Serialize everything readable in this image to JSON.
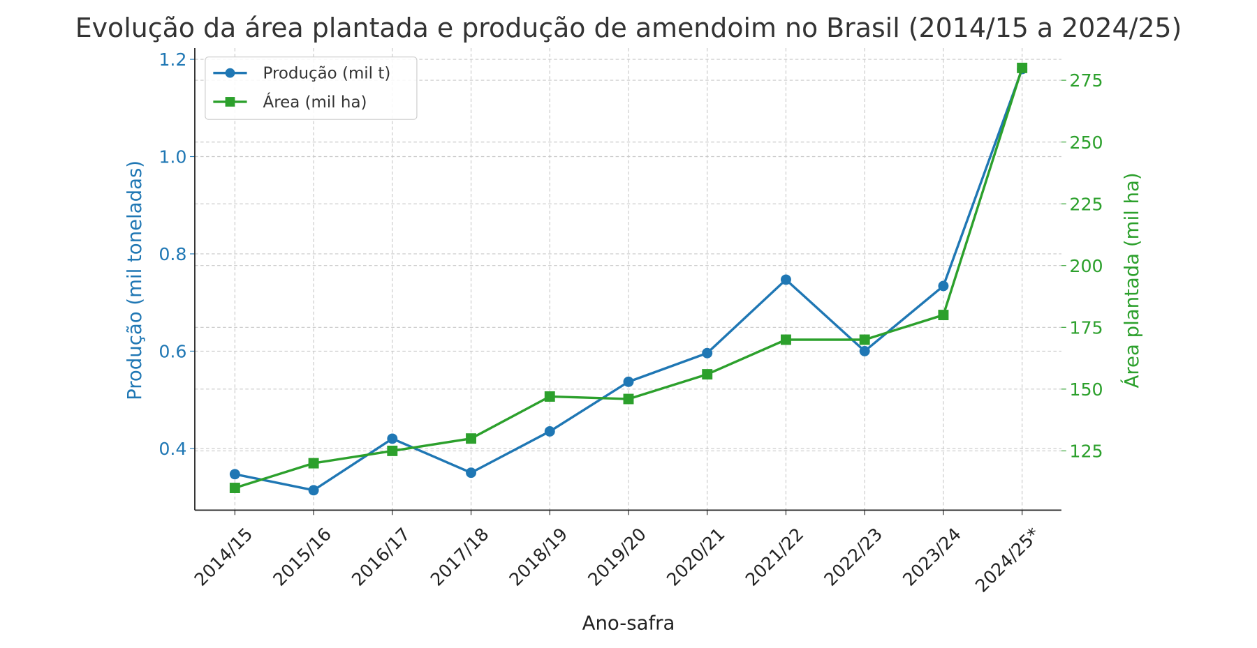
{
  "chart_data": {
    "type": "line",
    "title": "Evolução da área plantada e produção de amendoim no Brasil (2014/15 a 2024/25)",
    "xlabel": "Ano-safra",
    "ylabel_left": "Produção (mil toneladas)",
    "ylabel_right": "Área plantada (mil ha)",
    "categories": [
      "2014/15",
      "2015/16",
      "2016/17",
      "2017/18",
      "2018/19",
      "2019/20",
      "2020/21",
      "2021/22",
      "2022/23",
      "2023/24",
      "2024/25*"
    ],
    "series": [
      {
        "name": "Produção (mil t)",
        "axis": "left",
        "color": "#1f77b4",
        "marker": "circle",
        "values": [
          0.347,
          0.314,
          0.42,
          0.35,
          0.435,
          0.537,
          0.596,
          0.747,
          0.6,
          0.734,
          1.18
        ]
      },
      {
        "name": "Área (mil ha)",
        "axis": "right",
        "color": "#2ca02c",
        "marker": "square",
        "values": [
          110,
          120,
          125,
          130,
          147,
          146,
          156,
          170,
          170,
          180,
          280
        ]
      }
    ],
    "ylim_left": [
      0.273,
      1.223
    ],
    "ylim_right": [
      101,
      288
    ],
    "yticks_left": [
      0.4,
      0.6,
      0.8,
      1.0,
      1.2
    ],
    "yticks_left_labels": [
      "0.4",
      "0.6",
      "0.8",
      "1.0",
      "1.2"
    ],
    "yticks_right": [
      125,
      150,
      175,
      200,
      225,
      250,
      275
    ],
    "yticks_right_labels": [
      "125",
      "150",
      "175",
      "200",
      "225",
      "250",
      "275"
    ],
    "grid": true,
    "legend_position": "top-left"
  }
}
